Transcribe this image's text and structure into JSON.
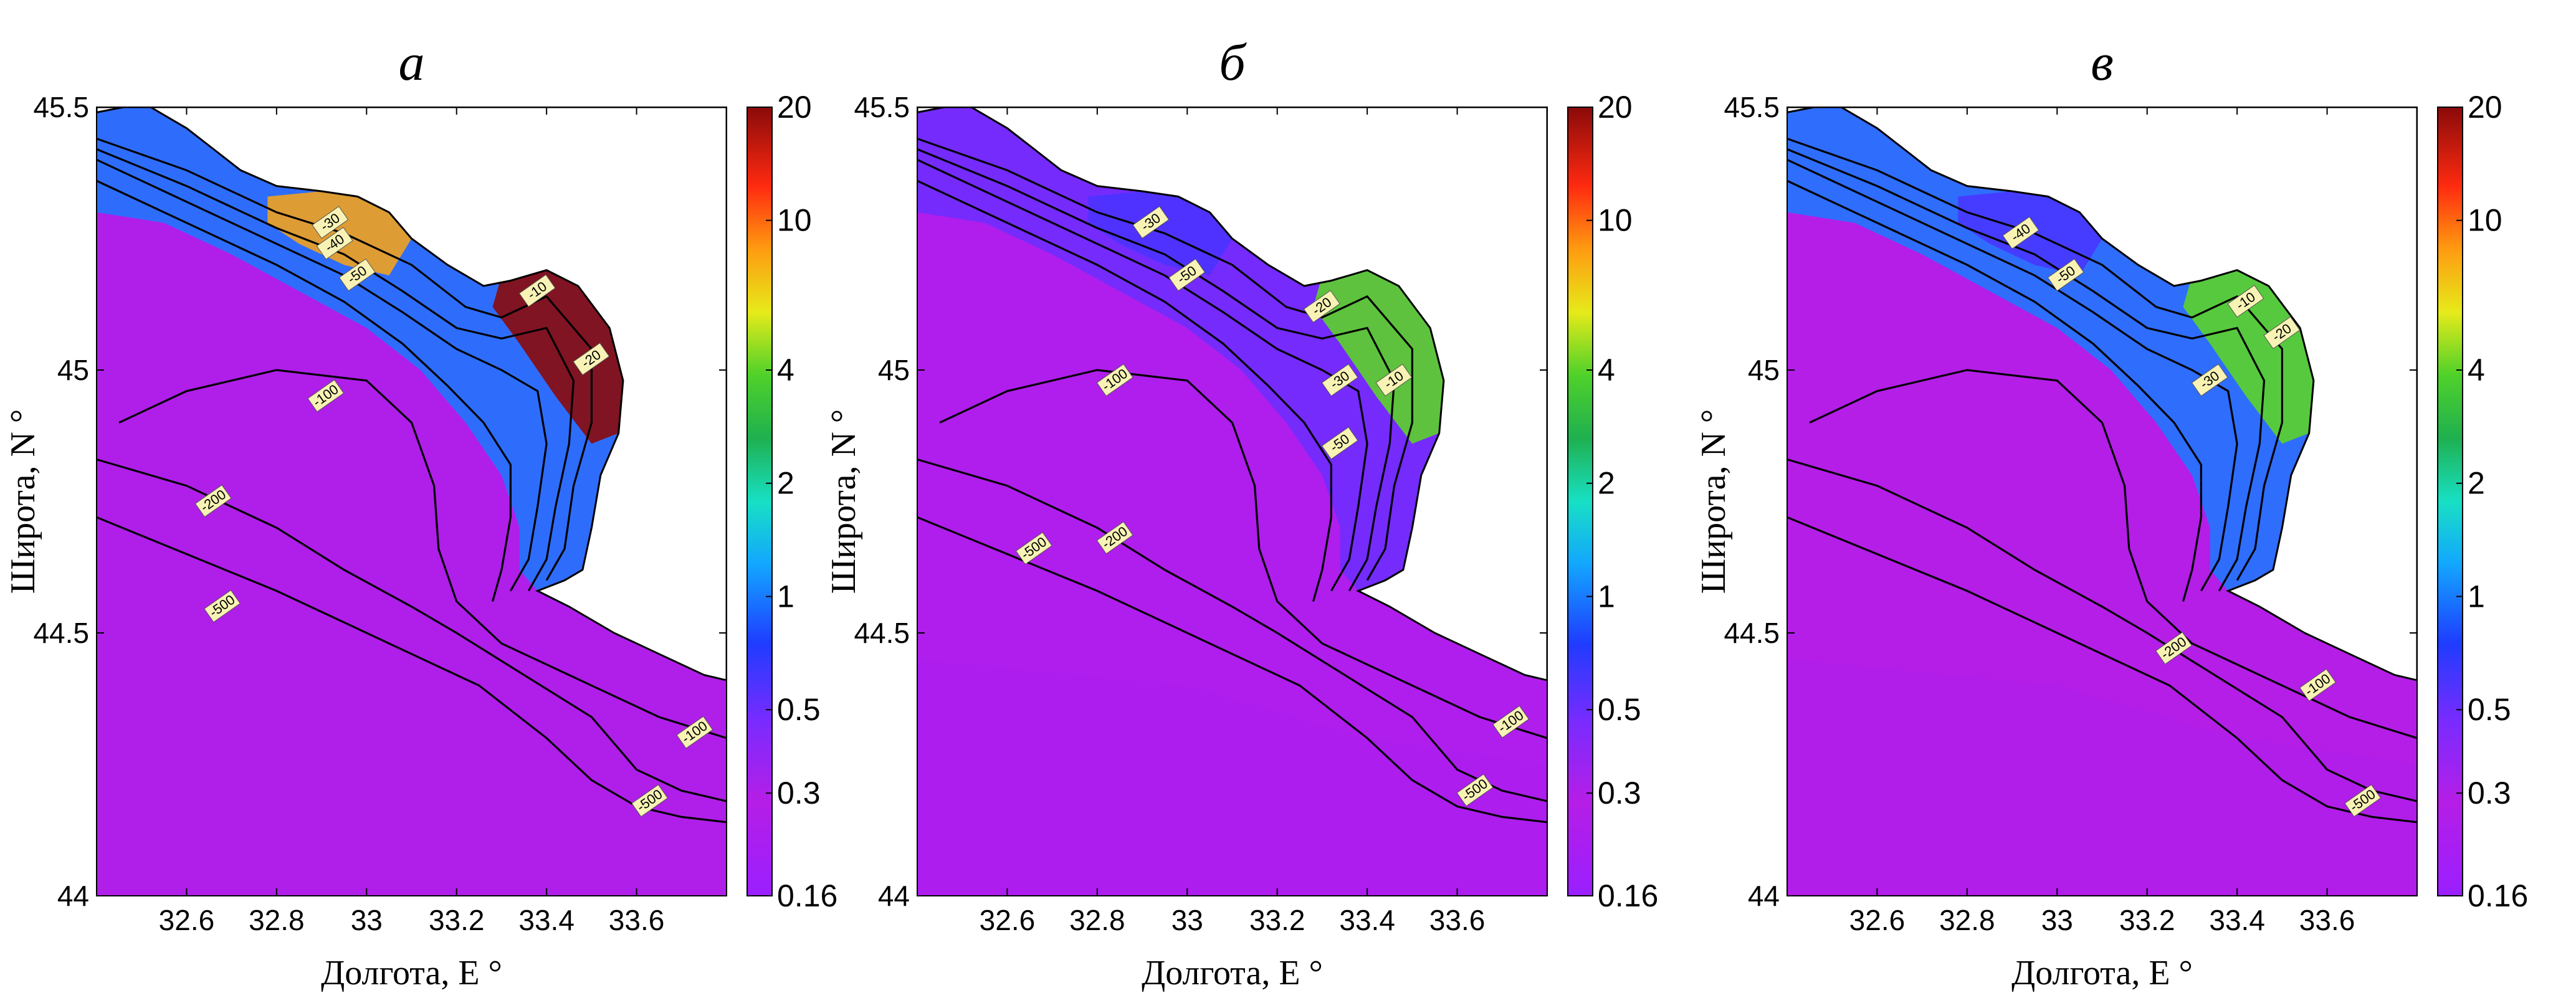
{
  "chart_data": [
    {
      "type": "heatmap",
      "title": "а",
      "xlabel": "Долгота, E °",
      "ylabel": "Широта, N °",
      "xlim": [
        32.4,
        33.8
      ],
      "ylim": [
        44.0,
        45.5
      ],
      "x_ticks": [
        "32.6",
        "32.8",
        "33",
        "33.2",
        "33.4",
        "33.6"
      ],
      "y_ticks": [
        "44",
        "44.5",
        "45",
        "45.5"
      ],
      "colorbar": {
        "scale": "log",
        "ticks": [
          "0.16",
          "0.3",
          "0.5",
          "1",
          "2",
          "4",
          "10",
          "20"
        ],
        "range": [
          0.16,
          20
        ]
      },
      "open_sea_value": 0.3,
      "coastal_band_value": 1.0,
      "shelf_patch_value": 20,
      "contour_labels": [
        "-10",
        "-20",
        "-30",
        "-40",
        "-50",
        "-100",
        "-200",
        "-500",
        "-100",
        "-500"
      ]
    },
    {
      "type": "heatmap",
      "title": "б",
      "xlabel": "Долгота, E °",
      "ylabel": "Широта, N °",
      "xlim": [
        32.4,
        33.8
      ],
      "ylim": [
        44.0,
        45.5
      ],
      "x_ticks": [
        "32.6",
        "32.8",
        "33",
        "33.2",
        "33.4",
        "33.6"
      ],
      "y_ticks": [
        "44",
        "44.5",
        "45",
        "45.5"
      ],
      "colorbar": {
        "scale": "log",
        "ticks": [
          "0.16",
          "0.3",
          "0.5",
          "1",
          "2",
          "4",
          "10",
          "20"
        ],
        "range": [
          0.16,
          20
        ]
      },
      "open_sea_value": 0.25,
      "coastal_band_value": 0.5,
      "shelf_patch_value": 4,
      "contour_labels": [
        "-30",
        "-50",
        "-20",
        "-30",
        "-10",
        "-50",
        "-100",
        "-500",
        "-200",
        "-100",
        "-500"
      ]
    },
    {
      "type": "heatmap",
      "title": "в",
      "xlabel": "Долгота, E °",
      "ylabel": "Широта, N °",
      "xlim": [
        32.4,
        33.8
      ],
      "ylim": [
        44.0,
        45.5
      ],
      "x_ticks": [
        "32.6",
        "32.8",
        "33",
        "33.2",
        "33.4",
        "33.6"
      ],
      "y_ticks": [
        "44",
        "44.5",
        "45",
        "45.5"
      ],
      "colorbar": {
        "scale": "log",
        "ticks": [
          "0.16",
          "0.3",
          "0.5",
          "1",
          "2",
          "4",
          "10",
          "20"
        ],
        "range": [
          0.16,
          20
        ]
      },
      "open_sea_value": 0.28,
      "coastal_band_value": 1.0,
      "shelf_patch_value": 4,
      "contour_labels": [
        "-40",
        "-50",
        "-10",
        "-20",
        "-30",
        "-200",
        "-100",
        "-500"
      ]
    }
  ]
}
